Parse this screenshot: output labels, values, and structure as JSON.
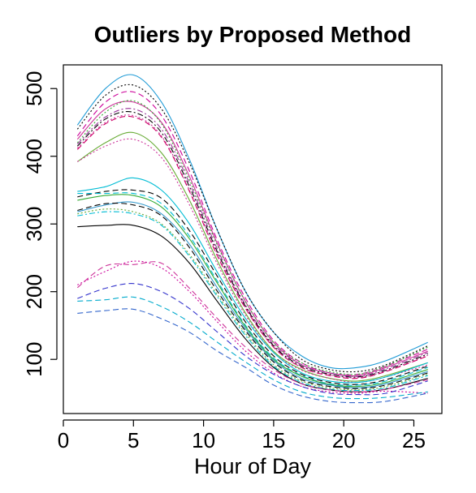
{
  "chart_data": {
    "type": "line",
    "title": "Outliers by Proposed Method",
    "xlabel": "Hour of Day",
    "ylabel": "",
    "xlim": [
      0,
      27
    ],
    "ylim": [
      20,
      535
    ],
    "xticks": [
      0,
      5,
      10,
      15,
      20,
      25
    ],
    "yticks": [
      100,
      200,
      300,
      400,
      500
    ],
    "grid": false,
    "legend": "none",
    "x": [
      1,
      3,
      5,
      7,
      9,
      11,
      13,
      15,
      17,
      19,
      21,
      23,
      26
    ],
    "series": [
      {
        "color": "#1f9bd6",
        "dash": "solid",
        "values": [
          446,
          500,
          520,
          480,
          395,
          290,
          200,
          140,
          105,
          88,
          88,
          98,
          125
        ]
      },
      {
        "color": "#000000",
        "dash": "dotted",
        "values": [
          440,
          490,
          505,
          470,
          390,
          290,
          200,
          140,
          100,
          85,
          82,
          92,
          120
        ]
      },
      {
        "color": "#cc0099",
        "dash": "dashed",
        "values": [
          430,
          480,
          495,
          460,
          378,
          275,
          190,
          128,
          95,
          80,
          78,
          90,
          115
        ]
      },
      {
        "color": "#cc3399",
        "dash": "solid",
        "values": [
          425,
          470,
          480,
          450,
          370,
          270,
          185,
          125,
          92,
          80,
          76,
          88,
          112
        ]
      },
      {
        "color": "#33aa33",
        "dash": "dotted",
        "values": [
          420,
          465,
          482,
          448,
          365,
          268,
          185,
          125,
          95,
          82,
          78,
          90,
          118
        ]
      },
      {
        "color": "#993399",
        "dash": "dashdot",
        "values": [
          418,
          458,
          470,
          440,
          360,
          262,
          180,
          122,
          92,
          80,
          75,
          86,
          110
        ]
      },
      {
        "color": "#000000",
        "dash": "dashdot",
        "values": [
          415,
          455,
          465,
          435,
          355,
          258,
          178,
          120,
          90,
          78,
          74,
          84,
          108
        ]
      },
      {
        "color": "#cc3399",
        "dash": "dotted",
        "values": [
          412,
          450,
          460,
          430,
          350,
          255,
          176,
          118,
          88,
          77,
          73,
          83,
          106
        ]
      },
      {
        "color": "#cc0066",
        "dash": "dashed",
        "values": [
          410,
          448,
          458,
          428,
          348,
          252,
          175,
          118,
          88,
          76,
          72,
          82,
          105
        ]
      },
      {
        "color": "#66aa33",
        "dash": "solid",
        "values": [
          392,
          420,
          435,
          405,
          335,
          245,
          168,
          112,
          85,
          72,
          68,
          76,
          95
        ]
      },
      {
        "color": "#cc3399",
        "dash": "dotted",
        "values": [
          392,
          415,
          425,
          398,
          328,
          240,
          165,
          110,
          84,
          72,
          66,
          74,
          92
        ]
      },
      {
        "color": "#00bcd4",
        "dash": "solid",
        "values": [
          348,
          355,
          368,
          350,
          300,
          228,
          160,
          110,
          80,
          68,
          66,
          74,
          95
        ]
      },
      {
        "color": "#000000",
        "dash": "dashed",
        "values": [
          340,
          348,
          350,
          338,
          290,
          222,
          155,
          105,
          78,
          66,
          63,
          70,
          90
        ]
      },
      {
        "color": "#00bcd4",
        "dash": "dashed",
        "values": [
          345,
          345,
          345,
          330,
          282,
          215,
          150,
          102,
          76,
          64,
          62,
          68,
          88
        ]
      },
      {
        "color": "#33aa33",
        "dash": "solid",
        "values": [
          335,
          342,
          342,
          325,
          278,
          212,
          148,
          100,
          75,
          63,
          60,
          66,
          85
        ]
      },
      {
        "color": "#3399cc",
        "dash": "solid",
        "values": [
          318,
          328,
          332,
          315,
          270,
          205,
          145,
          98,
          72,
          62,
          58,
          64,
          82
        ]
      },
      {
        "color": "#000000",
        "dash": "dashed",
        "values": [
          320,
          330,
          328,
          312,
          265,
          200,
          142,
          96,
          70,
          60,
          57,
          62,
          80
        ]
      },
      {
        "color": "#66aa33",
        "dash": "dotted",
        "values": [
          315,
          322,
          318,
          300,
          255,
          195,
          138,
          92,
          68,
          58,
          55,
          60,
          78
        ]
      },
      {
        "color": "#00bcd4",
        "dash": "dashdot",
        "values": [
          312,
          318,
          315,
          298,
          252,
          192,
          135,
          90,
          66,
          56,
          54,
          58,
          76
        ]
      },
      {
        "color": "#000000",
        "dash": "solid",
        "values": [
          296,
          298,
          298,
          282,
          242,
          185,
          130,
          88,
          64,
          55,
          52,
          56,
          72
        ]
      },
      {
        "color": "#cc3399",
        "dash": "dashed",
        "values": [
          206,
          238,
          240,
          242,
          205,
          160,
          118,
          85,
          64,
          55,
          52,
          56,
          70
        ]
      },
      {
        "color": "#cc0099",
        "dash": "dotted",
        "values": [
          210,
          230,
          245,
          235,
          200,
          155,
          112,
          80,
          60,
          52,
          50,
          53,
          50
        ]
      },
      {
        "color": "#3333cc",
        "dash": "dashed",
        "values": [
          190,
          205,
          212,
          200,
          175,
          140,
          105,
          78,
          60,
          50,
          48,
          50,
          68
        ]
      },
      {
        "color": "#00aacc",
        "dash": "dashed",
        "values": [
          186,
          188,
          192,
          178,
          155,
          125,
          96,
          70,
          52,
          44,
          42,
          44,
          52
        ]
      },
      {
        "color": "#3366cc",
        "dash": "dashed",
        "values": [
          168,
          172,
          174,
          160,
          140,
          112,
          88,
          62,
          46,
          38,
          36,
          38,
          50
        ]
      }
    ]
  }
}
